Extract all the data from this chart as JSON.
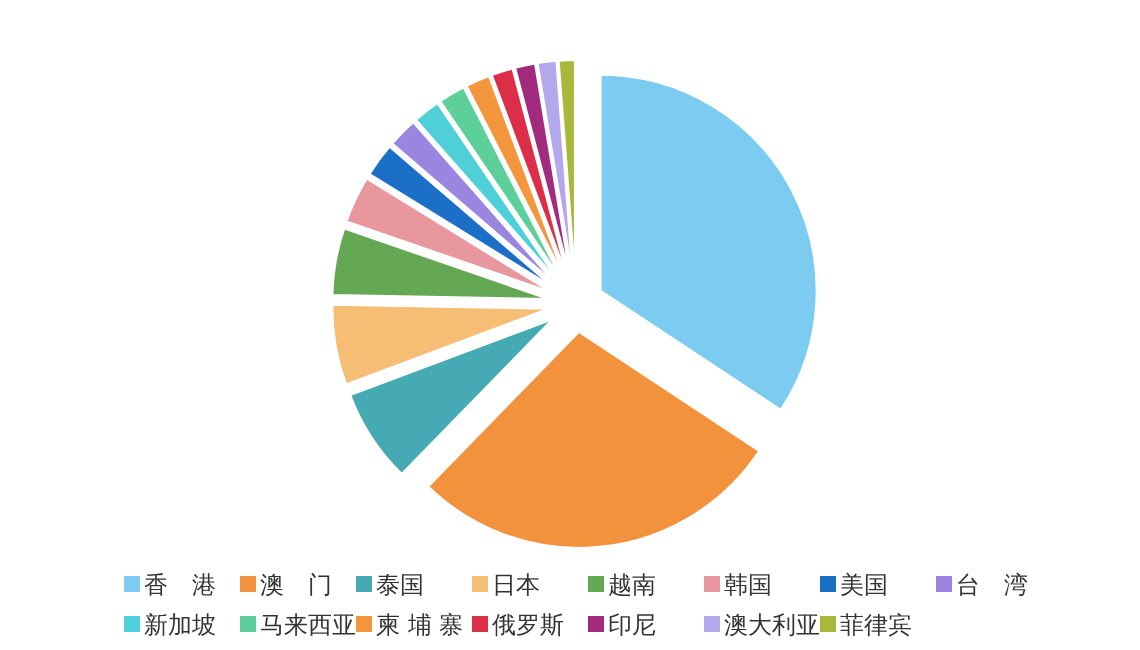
{
  "chart_data": {
    "type": "pie",
    "categories": [
      "香　港",
      "澳　门",
      "泰国",
      "日本",
      "越南",
      "韩国",
      "美国",
      "台　湾",
      "新加坡",
      "马来西亚",
      "柬 埔 寨",
      "俄罗斯",
      "印尼",
      "澳大利亚",
      "菲律宾"
    ],
    "values": [
      34.3,
      28,
      7,
      6,
      5,
      3.5,
      2.5,
      2.2,
      2,
      2,
      1.8,
      1.6,
      1.5,
      1.4,
      1.2
    ],
    "colors": [
      "#7ccbf0",
      "#f2923c",
      "#45aab3",
      "#f6bd74",
      "#64a853",
      "#e9979e",
      "#1c6fc7",
      "#9a85e0",
      "#4fcfd8",
      "#5ccf9a",
      "#f4963e",
      "#dc2e48",
      "#a32b7f",
      "#b3a8ec",
      "#a8b83a"
    ],
    "legend": "bottom"
  }
}
